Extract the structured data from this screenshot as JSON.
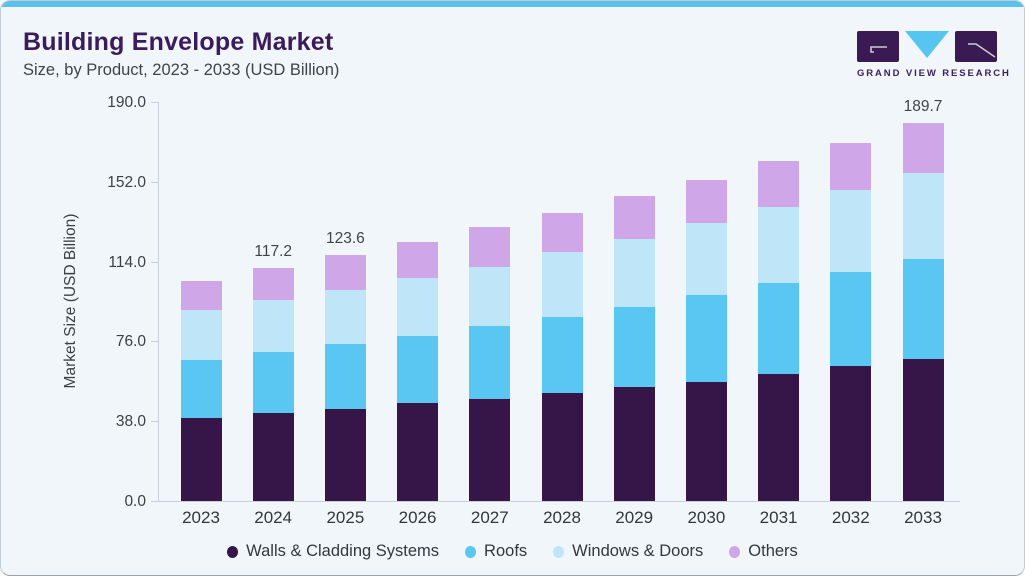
{
  "header": {
    "title": "Building Envelope Market",
    "subtitle": "Size, by Product, 2023 - 2033 (USD Billion)"
  },
  "logo": {
    "brand": "GRAND VIEW RESEARCH",
    "block_color": "#3A1A52",
    "triangle_color": "#56C5F0",
    "text_color": "#3B2064"
  },
  "colors": {
    "card_background": "#F1F6FA",
    "top_accent": "#5BC2EE",
    "title": "#3A1C5C",
    "axis_line": "#C7D0D8",
    "axis_text": "#3A3F44"
  },
  "chart_data": {
    "type": "bar",
    "stacked": true,
    "title": "Building Envelope Market Size, by Product, 2023 - 2033 (USD Billion)",
    "categories": [
      "2023",
      "2024",
      "2025",
      "2026",
      "2027",
      "2028",
      "2029",
      "2030",
      "2031",
      "2032",
      "2033"
    ],
    "series": [
      {
        "name": "Walls & Cladding Systems",
        "color": "#361549",
        "values": [
          41.6,
          44.0,
          46.4,
          49.1,
          51.2,
          54.3,
          57.5,
          59.9,
          63.7,
          67.6,
          71.3
        ]
      },
      {
        "name": "Roofs",
        "color": "#59C7F2",
        "values": [
          29.2,
          30.8,
          32.7,
          33.9,
          36.7,
          38.3,
          40.2,
          43.6,
          45.6,
          47.4,
          50.3
        ]
      },
      {
        "name": "Windows & Doors",
        "color": "#BFE6F8",
        "values": [
          25.1,
          26.1,
          27.0,
          29.3,
          29.8,
          32.3,
          34.2,
          36.0,
          38.6,
          41.3,
          43.4
        ]
      },
      {
        "name": "Others",
        "color": "#CFA7E9",
        "values": [
          14.8,
          16.3,
          17.5,
          18.0,
          19.8,
          20.0,
          21.2,
          22.0,
          22.8,
          23.6,
          24.7
        ]
      }
    ],
    "bar_total_labels": [
      "",
      "117.2",
      "123.6",
      "",
      "",
      "",
      "",
      "",
      "",
      "",
      "189.7"
    ],
    "ylabel": "Market Size (USD Billion)",
    "ytick_labels": [
      "0.0",
      "38.0",
      "76.0",
      "114.0",
      "152.0",
      "190.0"
    ],
    "ylim": [
      0,
      190
    ],
    "grid": false,
    "legend_position": "bottom"
  }
}
